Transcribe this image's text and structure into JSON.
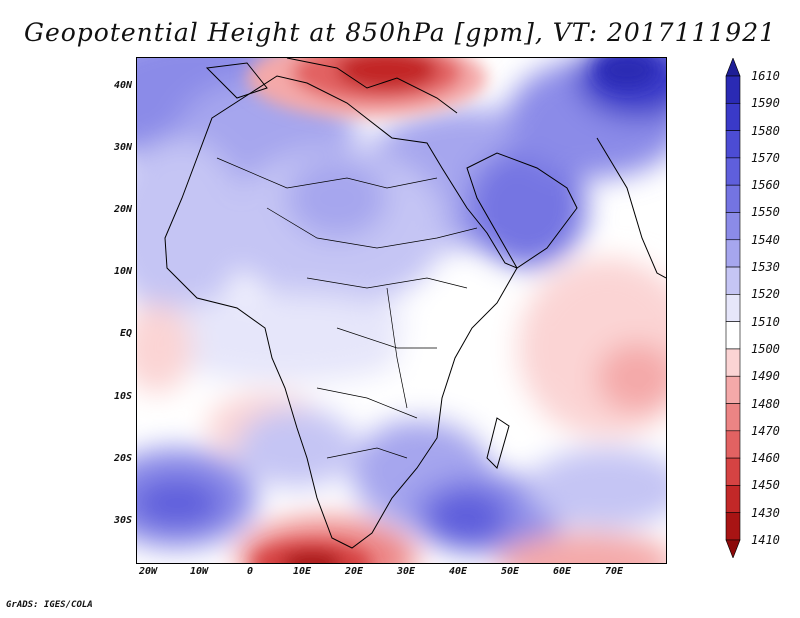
{
  "title": "Geopotential Height at 850hPa [gpm], VT: 2017111921",
  "footer": "GrADS: IGES/COLA",
  "map": {
    "lat_labels": [
      "40N",
      "30N",
      "20N",
      "10N",
      "EQ",
      "10S",
      "20S",
      "30S"
    ],
    "lon_labels": [
      "20W",
      "10W",
      "0",
      "10E",
      "20E",
      "30E",
      "40E",
      "50E",
      "60E",
      "70E"
    ]
  },
  "colorbar": {
    "levels": [
      "1610",
      "1590",
      "1580",
      "1570",
      "1560",
      "1550",
      "1540",
      "1530",
      "1520",
      "1510",
      "1500",
      "1490",
      "1480",
      "1470",
      "1460",
      "1450",
      "1430",
      "1410"
    ],
    "colors": [
      "#1e1e96",
      "#2a2ab4",
      "#3a3ac8",
      "#4c4cd4",
      "#5f5fdc",
      "#7474e2",
      "#8b8be8",
      "#a6a6ee",
      "#c5c5f4",
      "#e6e6fa",
      "#ffffff",
      "#fbd4d4",
      "#f4a9a9",
      "#ec8484",
      "#e26262",
      "#d54343",
      "#c22828",
      "#a81414",
      "#8c0a0a"
    ]
  }
}
